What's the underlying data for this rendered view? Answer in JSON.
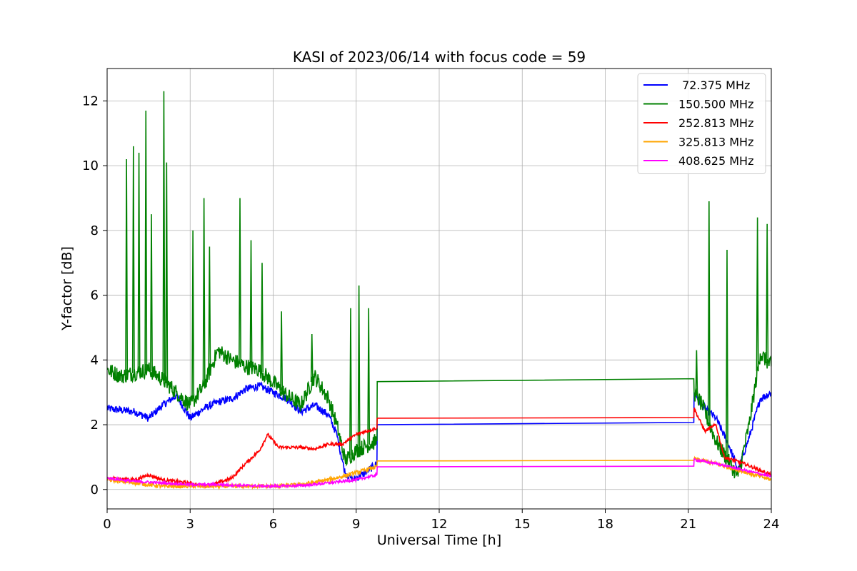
{
  "chart_data": {
    "type": "line",
    "title": "KASI of 2023/06/14 with focus code = 59",
    "xlabel": "Universal Time [h]",
    "ylabel": "Y-factor [dB]",
    "xlim": [
      0,
      24
    ],
    "ylim": [
      -0.6,
      13.0
    ],
    "xticks": [
      0,
      3,
      6,
      9,
      12,
      15,
      18,
      21,
      24
    ],
    "yticks": [
      0,
      2,
      4,
      6,
      8,
      10,
      12
    ],
    "grid": true,
    "legend_position": "top-right",
    "series": [
      {
        "name": " 72.375 MHz",
        "color": "#0000ff",
        "noise": 0.12,
        "points": [
          [
            0,
            2.5
          ],
          [
            1,
            2.4
          ],
          [
            1.5,
            2.2
          ],
          [
            2,
            2.6
          ],
          [
            2.5,
            2.9
          ],
          [
            3,
            2.2
          ],
          [
            3.5,
            2.5
          ],
          [
            4,
            2.7
          ],
          [
            4.5,
            2.8
          ],
          [
            5,
            3.1
          ],
          [
            5.5,
            3.2
          ],
          [
            6,
            3.0
          ],
          [
            6.5,
            2.8
          ],
          [
            7,
            2.4
          ],
          [
            7.5,
            2.6
          ],
          [
            8,
            2.3
          ],
          [
            8.3,
            1.7
          ],
          [
            8.6,
            0.5
          ],
          [
            8.9,
            0.3
          ],
          [
            9.3,
            0.5
          ],
          [
            9.75,
            0.8
          ],
          [
            9.76,
            2.0
          ],
          [
            21.2,
            2.07
          ],
          [
            21.21,
            3.0
          ],
          [
            21.5,
            2.6
          ],
          [
            22,
            2.2
          ],
          [
            22.5,
            1.3
          ],
          [
            22.8,
            0.6
          ],
          [
            23.2,
            1.6
          ],
          [
            23.6,
            2.8
          ],
          [
            24,
            3.0
          ]
        ]
      },
      {
        "name": "150.500 MHz",
        "color": "#008000",
        "noise": 0.25,
        "points": [
          [
            0,
            3.7
          ],
          [
            0.5,
            3.5
          ],
          [
            1,
            3.6
          ],
          [
            1.5,
            3.7
          ],
          [
            2,
            3.4
          ],
          [
            2.5,
            3.0
          ],
          [
            3,
            2.6
          ],
          [
            3.5,
            3.2
          ],
          [
            4,
            4.3
          ],
          [
            4.5,
            4.0
          ],
          [
            5,
            3.8
          ],
          [
            5.5,
            3.7
          ],
          [
            6,
            3.3
          ],
          [
            6.5,
            2.9
          ],
          [
            7,
            2.6
          ],
          [
            7.5,
            3.5
          ],
          [
            8,
            2.8
          ],
          [
            8.3,
            2.0
          ],
          [
            8.6,
            0.9
          ],
          [
            9,
            1.2
          ],
          [
            9.75,
            1.5
          ],
          [
            9.76,
            3.33
          ],
          [
            21.2,
            3.42
          ],
          [
            21.21,
            3.0
          ],
          [
            21.5,
            2.6
          ],
          [
            22,
            1.5
          ],
          [
            22.5,
            0.8
          ],
          [
            22.8,
            0.4
          ],
          [
            23.2,
            2.0
          ],
          [
            23.6,
            4.2
          ],
          [
            24,
            3.8
          ]
        ],
        "spikes": [
          [
            0.7,
            10.2
          ],
          [
            0.95,
            10.6
          ],
          [
            1.15,
            10.4
          ],
          [
            1.4,
            11.7
          ],
          [
            1.6,
            8.5
          ],
          [
            2.05,
            12.3
          ],
          [
            2.15,
            10.1
          ],
          [
            3.1,
            8.0
          ],
          [
            3.5,
            9.0
          ],
          [
            3.7,
            7.5
          ],
          [
            4.8,
            9.0
          ],
          [
            5.2,
            7.7
          ],
          [
            5.6,
            7.0
          ],
          [
            6.3,
            5.5
          ],
          [
            7.4,
            4.8
          ],
          [
            8.8,
            5.6
          ],
          [
            9.1,
            6.3
          ],
          [
            9.45,
            5.6
          ],
          [
            21.3,
            4.3
          ],
          [
            21.75,
            8.9
          ],
          [
            22.4,
            7.4
          ],
          [
            23.5,
            8.4
          ],
          [
            23.85,
            8.2
          ]
        ]
      },
      {
        "name": "252.813 MHz",
        "color": "#ff0000",
        "noise": 0.05,
        "points": [
          [
            0,
            0.35
          ],
          [
            1,
            0.3
          ],
          [
            1.5,
            0.45
          ],
          [
            2,
            0.3
          ],
          [
            3,
            0.2
          ],
          [
            3.5,
            0.1
          ],
          [
            4,
            0.2
          ],
          [
            4.5,
            0.35
          ],
          [
            5,
            0.8
          ],
          [
            5.5,
            1.2
          ],
          [
            5.8,
            1.7
          ],
          [
            6.2,
            1.3
          ],
          [
            7,
            1.3
          ],
          [
            7.5,
            1.25
          ],
          [
            8,
            1.4
          ],
          [
            8.5,
            1.4
          ],
          [
            9,
            1.7
          ],
          [
            9.75,
            1.9
          ],
          [
            9.76,
            2.2
          ],
          [
            21.2,
            2.22
          ],
          [
            21.21,
            2.5
          ],
          [
            21.6,
            1.8
          ],
          [
            22,
            2.0
          ],
          [
            22.3,
            1.0
          ],
          [
            23,
            0.8
          ],
          [
            24,
            0.45
          ]
        ]
      },
      {
        "name": "325.813 MHz",
        "color": "#ffa500",
        "noise": 0.06,
        "points": [
          [
            0,
            0.3
          ],
          [
            1,
            0.2
          ],
          [
            2,
            0.1
          ],
          [
            3,
            0.1
          ],
          [
            4,
            0.1
          ],
          [
            5,
            0.1
          ],
          [
            6,
            0.1
          ],
          [
            7,
            0.15
          ],
          [
            8,
            0.3
          ],
          [
            8.5,
            0.4
          ],
          [
            9.75,
            0.7
          ],
          [
            9.76,
            0.88
          ],
          [
            21.2,
            0.9
          ],
          [
            21.21,
            0.95
          ],
          [
            22,
            0.8
          ],
          [
            23,
            0.55
          ],
          [
            24,
            0.3
          ]
        ]
      },
      {
        "name": "408.625 MHz",
        "color": "#ff00ff",
        "noise": 0.04,
        "points": [
          [
            0,
            0.35
          ],
          [
            1,
            0.25
          ],
          [
            2,
            0.2
          ],
          [
            3,
            0.15
          ],
          [
            4,
            0.15
          ],
          [
            5,
            0.12
          ],
          [
            6,
            0.1
          ],
          [
            7,
            0.12
          ],
          [
            8,
            0.2
          ],
          [
            9,
            0.3
          ],
          [
            9.75,
            0.45
          ],
          [
            9.76,
            0.7
          ],
          [
            21.2,
            0.72
          ],
          [
            21.21,
            0.92
          ],
          [
            22,
            0.8
          ],
          [
            23,
            0.6
          ],
          [
            24,
            0.4
          ]
        ]
      }
    ]
  }
}
